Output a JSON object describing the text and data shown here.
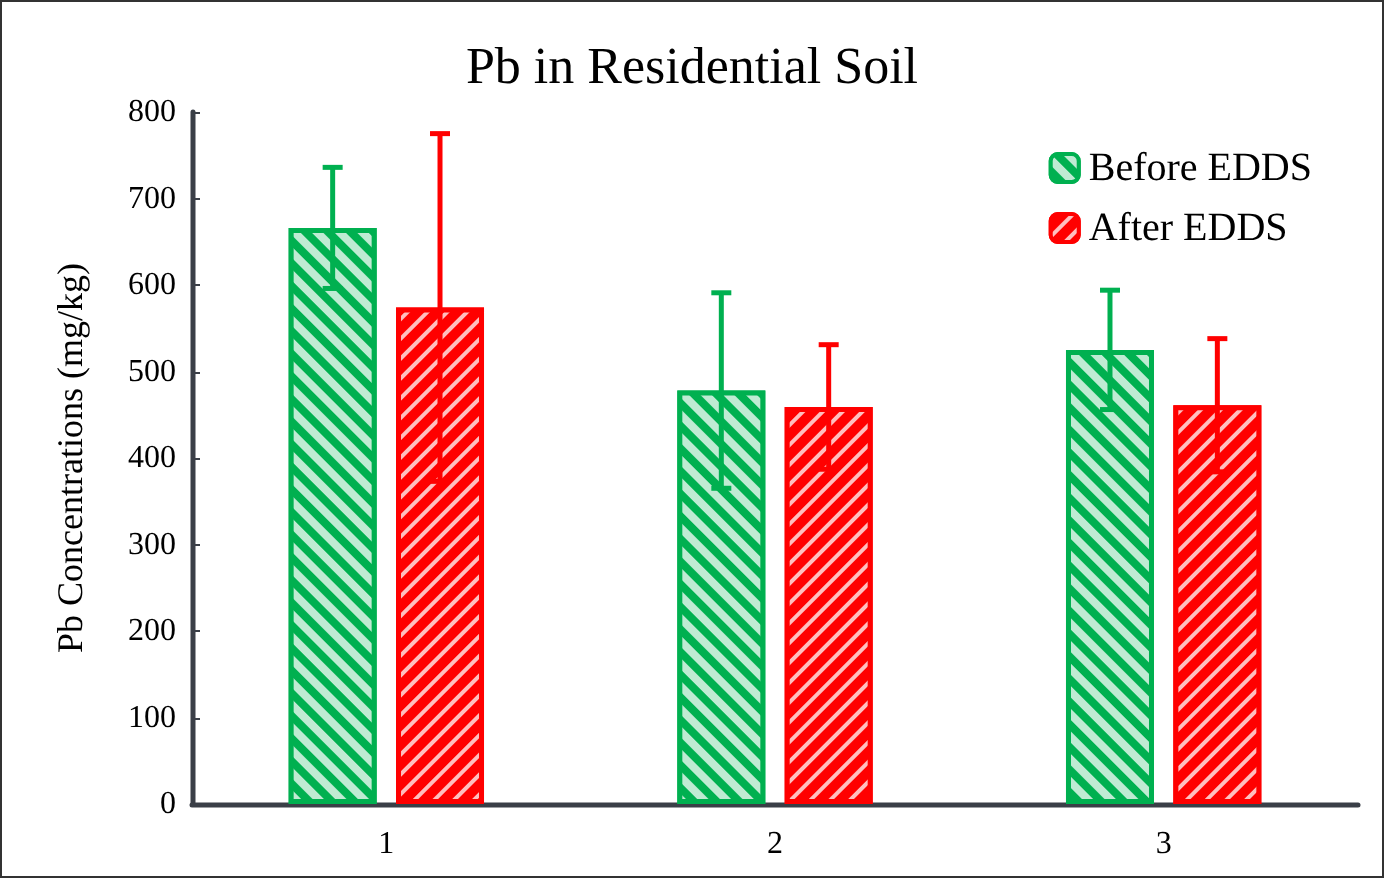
{
  "chart_data": {
    "type": "bar",
    "title": "Pb in Residential Soil",
    "ylabel": "Pb Concentrations (mg/kg)",
    "categories": [
      "1",
      "2",
      "3"
    ],
    "series": [
      {
        "name": "Before EDDS",
        "color": "#00b050",
        "values": [
          666,
          478,
          525
        ],
        "errors": [
          70,
          113,
          69
        ]
      },
      {
        "name": "After EDDS",
        "color": "#ff0000",
        "values": [
          574,
          459,
          461
        ],
        "errors": [
          201,
          72,
          77
        ]
      }
    ],
    "ylim": [
      0,
      800
    ],
    "yticks": [
      0,
      100,
      200,
      300,
      400,
      500,
      600,
      700,
      800
    ],
    "grid": false,
    "legend": "top right"
  }
}
